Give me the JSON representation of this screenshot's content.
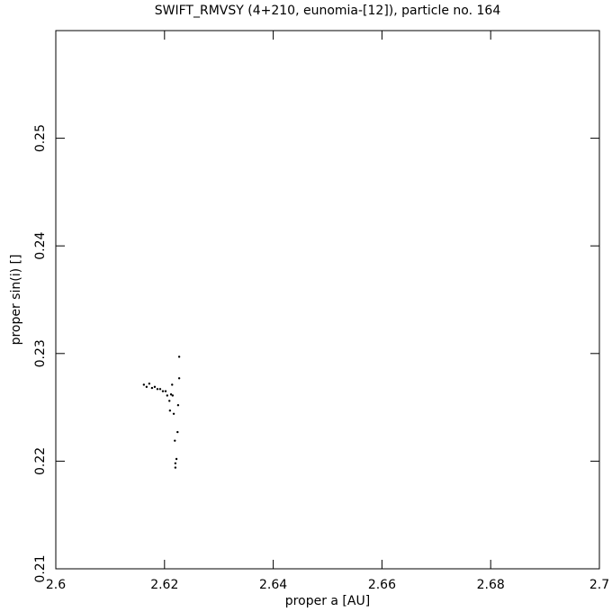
{
  "chart_data": {
    "type": "scatter",
    "title": "SWIFT_RMVSY (4+210, eunomia-[12]), particle no. 164",
    "xlabel": "proper a [AU]",
    "ylabel": "proper sin(i) []",
    "xlim": [
      2.6,
      2.7
    ],
    "ylim": [
      0.21,
      0.26
    ],
    "xticks": [
      2.6,
      2.62,
      2.64,
      2.66,
      2.68,
      2.7
    ],
    "yticks": [
      0.21,
      0.22,
      0.23,
      0.24,
      0.25
    ],
    "color": "#000000",
    "x": [
      2.6162,
      2.6167,
      2.6172,
      2.6177,
      2.6182,
      2.6187,
      2.6192,
      2.6197,
      2.6202,
      2.6205,
      2.6209,
      2.621,
      2.6212,
      2.6214,
      2.6215,
      2.6217,
      2.6219,
      2.622,
      2.622,
      2.6222,
      2.6224,
      2.6225,
      2.6227,
      2.6227
    ],
    "y": [
      0.2271,
      0.2269,
      0.2272,
      0.2268,
      0.2269,
      0.2267,
      0.2267,
      0.2265,
      0.2265,
      0.2261,
      0.2256,
      0.2247,
      0.2262,
      0.2271,
      0.2261,
      0.2244,
      0.2219,
      0.2198,
      0.2194,
      0.2202,
      0.2227,
      0.2252,
      0.2277,
      0.2297
    ]
  }
}
